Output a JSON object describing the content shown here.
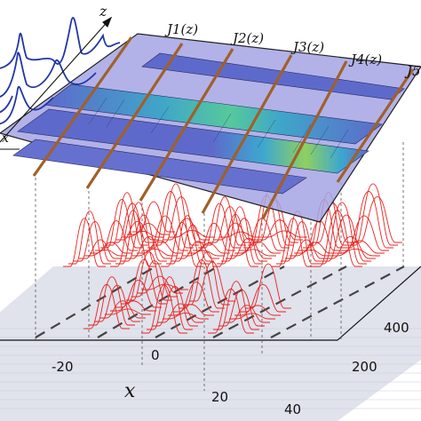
{
  "figure": {
    "wire_labels": [
      "J1(z)",
      "J2(z)",
      "J3(z)",
      "J4(z)",
      "J5"
    ],
    "inset_axis_labels": {
      "z": "z",
      "x": "x"
    },
    "bottom_axes": {
      "x_label": "x",
      "x_ticks": [
        "-20",
        "0",
        "20",
        "40"
      ],
      "z_ticks": [
        "200",
        "400"
      ]
    },
    "colors": {
      "top_panel": "#9b9be0",
      "waveguide": "#5e6acb",
      "wire": "#a0602a",
      "curves": "#e8231f",
      "inset_curves": "#2336a8",
      "floor": "#d9dbe6"
    }
  }
}
